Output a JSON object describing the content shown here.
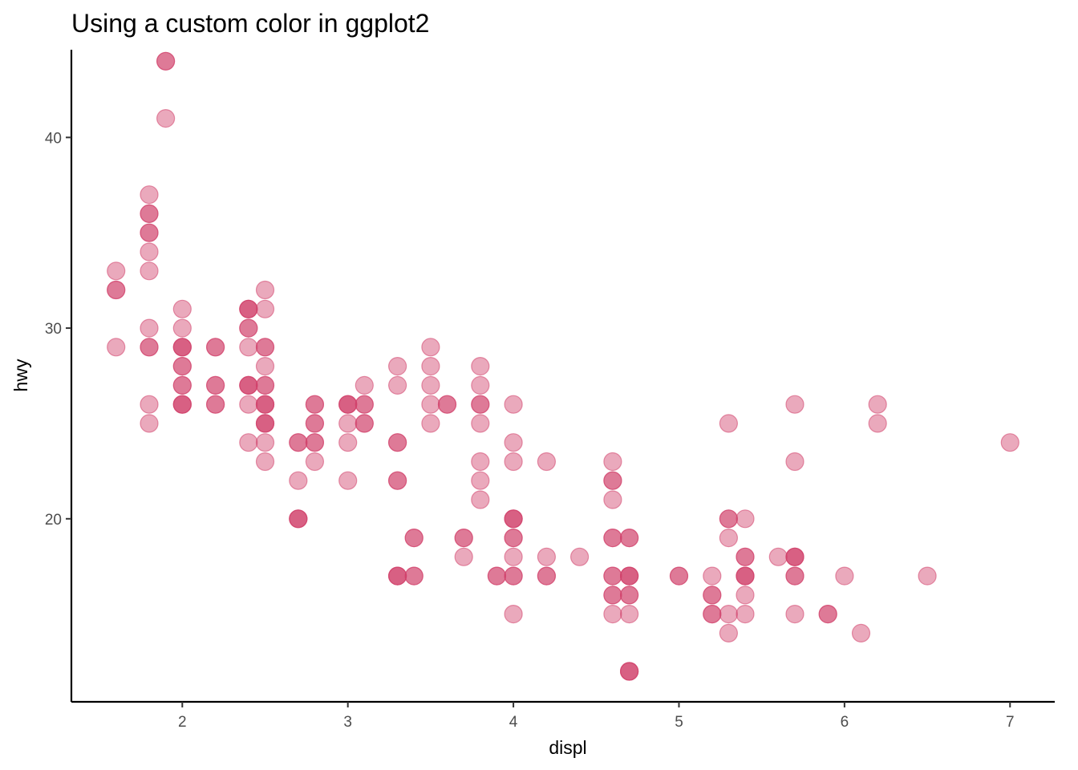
{
  "chart_data": {
    "type": "scatter",
    "title": "Using a custom color in ggplot2",
    "xlabel": "displ",
    "ylabel": "hwy",
    "xlim": [
      1.33,
      7.27
    ],
    "ylim": [
      10.4,
      44.6
    ],
    "x_ticks": [
      {
        "value": 2,
        "label": "2"
      },
      {
        "value": 3,
        "label": "3"
      },
      {
        "value": 4,
        "label": "4"
      },
      {
        "value": 5,
        "label": "5"
      },
      {
        "value": 6,
        "label": "6"
      },
      {
        "value": 7,
        "label": "7"
      }
    ],
    "y_ticks": [
      {
        "value": 20,
        "label": "20"
      },
      {
        "value": 30,
        "label": "30"
      },
      {
        "value": 40,
        "label": "40"
      }
    ],
    "grid": false,
    "point_color": "#D1406A",
    "point_alpha": 0.45,
    "points": [
      {
        "x": 1.9,
        "y": 44
      },
      {
        "x": 1.9,
        "y": 44
      },
      {
        "x": 1.9,
        "y": 41
      },
      {
        "x": 1.6,
        "y": 33
      },
      {
        "x": 1.6,
        "y": 32
      },
      {
        "x": 1.6,
        "y": 32
      },
      {
        "x": 1.6,
        "y": 29
      },
      {
        "x": 1.8,
        "y": 37
      },
      {
        "x": 1.8,
        "y": 36
      },
      {
        "x": 1.8,
        "y": 36
      },
      {
        "x": 1.8,
        "y": 35
      },
      {
        "x": 1.8,
        "y": 35
      },
      {
        "x": 1.8,
        "y": 34
      },
      {
        "x": 1.8,
        "y": 33
      },
      {
        "x": 1.8,
        "y": 30
      },
      {
        "x": 1.8,
        "y": 29
      },
      {
        "x": 1.8,
        "y": 29
      },
      {
        "x": 1.8,
        "y": 26
      },
      {
        "x": 1.8,
        "y": 25
      },
      {
        "x": 2.0,
        "y": 31
      },
      {
        "x": 2.0,
        "y": 30
      },
      {
        "x": 2.0,
        "y": 29
      },
      {
        "x": 2.0,
        "y": 29
      },
      {
        "x": 2.0,
        "y": 29
      },
      {
        "x": 2.0,
        "y": 28
      },
      {
        "x": 2.0,
        "y": 28
      },
      {
        "x": 2.0,
        "y": 27
      },
      {
        "x": 2.0,
        "y": 27
      },
      {
        "x": 2.0,
        "y": 26
      },
      {
        "x": 2.0,
        "y": 26
      },
      {
        "x": 2.0,
        "y": 26
      },
      {
        "x": 2.2,
        "y": 29
      },
      {
        "x": 2.2,
        "y": 29
      },
      {
        "x": 2.2,
        "y": 27
      },
      {
        "x": 2.2,
        "y": 27
      },
      {
        "x": 2.2,
        "y": 26
      },
      {
        "x": 2.2,
        "y": 26
      },
      {
        "x": 2.4,
        "y": 31
      },
      {
        "x": 2.4,
        "y": 31
      },
      {
        "x": 2.4,
        "y": 31
      },
      {
        "x": 2.4,
        "y": 30
      },
      {
        "x": 2.4,
        "y": 30
      },
      {
        "x": 2.4,
        "y": 29
      },
      {
        "x": 2.4,
        "y": 27
      },
      {
        "x": 2.4,
        "y": 27
      },
      {
        "x": 2.4,
        "y": 27
      },
      {
        "x": 2.4,
        "y": 26
      },
      {
        "x": 2.4,
        "y": 24
      },
      {
        "x": 2.5,
        "y": 32
      },
      {
        "x": 2.5,
        "y": 31
      },
      {
        "x": 2.5,
        "y": 29
      },
      {
        "x": 2.5,
        "y": 29
      },
      {
        "x": 2.5,
        "y": 28
      },
      {
        "x": 2.5,
        "y": 27
      },
      {
        "x": 2.5,
        "y": 27
      },
      {
        "x": 2.5,
        "y": 26
      },
      {
        "x": 2.5,
        "y": 26
      },
      {
        "x": 2.5,
        "y": 26
      },
      {
        "x": 2.5,
        "y": 25
      },
      {
        "x": 2.5,
        "y": 25
      },
      {
        "x": 2.5,
        "y": 25
      },
      {
        "x": 2.5,
        "y": 24
      },
      {
        "x": 2.5,
        "y": 23
      },
      {
        "x": 2.7,
        "y": 24
      },
      {
        "x": 2.7,
        "y": 24
      },
      {
        "x": 2.7,
        "y": 22
      },
      {
        "x": 2.7,
        "y": 20
      },
      {
        "x": 2.7,
        "y": 20
      },
      {
        "x": 2.7,
        "y": 20
      },
      {
        "x": 2.8,
        "y": 26
      },
      {
        "x": 2.8,
        "y": 26
      },
      {
        "x": 2.8,
        "y": 25
      },
      {
        "x": 2.8,
        "y": 25
      },
      {
        "x": 2.8,
        "y": 24
      },
      {
        "x": 2.8,
        "y": 24
      },
      {
        "x": 2.8,
        "y": 23
      },
      {
        "x": 3.0,
        "y": 26
      },
      {
        "x": 3.0,
        "y": 26
      },
      {
        "x": 3.0,
        "y": 26
      },
      {
        "x": 3.0,
        "y": 25
      },
      {
        "x": 3.0,
        "y": 24
      },
      {
        "x": 3.0,
        "y": 22
      },
      {
        "x": 3.1,
        "y": 27
      },
      {
        "x": 3.1,
        "y": 26
      },
      {
        "x": 3.1,
        "y": 26
      },
      {
        "x": 3.1,
        "y": 25
      },
      {
        "x": 3.1,
        "y": 25
      },
      {
        "x": 3.3,
        "y": 28
      },
      {
        "x": 3.3,
        "y": 27
      },
      {
        "x": 3.3,
        "y": 24
      },
      {
        "x": 3.3,
        "y": 24
      },
      {
        "x": 3.3,
        "y": 22
      },
      {
        "x": 3.3,
        "y": 22
      },
      {
        "x": 3.3,
        "y": 17
      },
      {
        "x": 3.3,
        "y": 17
      },
      {
        "x": 3.3,
        "y": 17
      },
      {
        "x": 3.4,
        "y": 19
      },
      {
        "x": 3.4,
        "y": 19
      },
      {
        "x": 3.4,
        "y": 17
      },
      {
        "x": 3.4,
        "y": 17
      },
      {
        "x": 3.5,
        "y": 29
      },
      {
        "x": 3.5,
        "y": 28
      },
      {
        "x": 3.5,
        "y": 27
      },
      {
        "x": 3.5,
        "y": 26
      },
      {
        "x": 3.5,
        "y": 25
      },
      {
        "x": 3.6,
        "y": 26
      },
      {
        "x": 3.6,
        "y": 26
      },
      {
        "x": 3.7,
        "y": 19
      },
      {
        "x": 3.7,
        "y": 19
      },
      {
        "x": 3.7,
        "y": 18
      },
      {
        "x": 3.8,
        "y": 28
      },
      {
        "x": 3.8,
        "y": 27
      },
      {
        "x": 3.8,
        "y": 26
      },
      {
        "x": 3.8,
        "y": 26
      },
      {
        "x": 3.8,
        "y": 25
      },
      {
        "x": 3.8,
        "y": 23
      },
      {
        "x": 3.8,
        "y": 22
      },
      {
        "x": 3.8,
        "y": 21
      },
      {
        "x": 3.9,
        "y": 17
      },
      {
        "x": 3.9,
        "y": 17
      },
      {
        "x": 4.0,
        "y": 26
      },
      {
        "x": 4.0,
        "y": 24
      },
      {
        "x": 4.0,
        "y": 23
      },
      {
        "x": 4.0,
        "y": 20
      },
      {
        "x": 4.0,
        "y": 20
      },
      {
        "x": 4.0,
        "y": 20
      },
      {
        "x": 4.0,
        "y": 19
      },
      {
        "x": 4.0,
        "y": 19
      },
      {
        "x": 4.0,
        "y": 18
      },
      {
        "x": 4.0,
        "y": 17
      },
      {
        "x": 4.0,
        "y": 17
      },
      {
        "x": 4.0,
        "y": 15
      },
      {
        "x": 4.2,
        "y": 23
      },
      {
        "x": 4.2,
        "y": 18
      },
      {
        "x": 4.2,
        "y": 17
      },
      {
        "x": 4.2,
        "y": 17
      },
      {
        "x": 4.4,
        "y": 18
      },
      {
        "x": 4.6,
        "y": 23
      },
      {
        "x": 4.6,
        "y": 22
      },
      {
        "x": 4.6,
        "y": 22
      },
      {
        "x": 4.6,
        "y": 21
      },
      {
        "x": 4.6,
        "y": 19
      },
      {
        "x": 4.6,
        "y": 19
      },
      {
        "x": 4.6,
        "y": 17
      },
      {
        "x": 4.6,
        "y": 17
      },
      {
        "x": 4.6,
        "y": 16
      },
      {
        "x": 4.6,
        "y": 16
      },
      {
        "x": 4.6,
        "y": 15
      },
      {
        "x": 4.7,
        "y": 19
      },
      {
        "x": 4.7,
        "y": 19
      },
      {
        "x": 4.7,
        "y": 17
      },
      {
        "x": 4.7,
        "y": 17
      },
      {
        "x": 4.7,
        "y": 17
      },
      {
        "x": 4.7,
        "y": 16
      },
      {
        "x": 4.7,
        "y": 16
      },
      {
        "x": 4.7,
        "y": 15
      },
      {
        "x": 4.7,
        "y": 12
      },
      {
        "x": 4.7,
        "y": 12
      },
      {
        "x": 4.7,
        "y": 12
      },
      {
        "x": 5.0,
        "y": 17
      },
      {
        "x": 5.0,
        "y": 17
      },
      {
        "x": 5.2,
        "y": 17
      },
      {
        "x": 5.2,
        "y": 16
      },
      {
        "x": 5.2,
        "y": 16
      },
      {
        "x": 5.2,
        "y": 15
      },
      {
        "x": 5.2,
        "y": 15
      },
      {
        "x": 5.3,
        "y": 25
      },
      {
        "x": 5.3,
        "y": 20
      },
      {
        "x": 5.3,
        "y": 20
      },
      {
        "x": 5.3,
        "y": 19
      },
      {
        "x": 5.3,
        "y": 15
      },
      {
        "x": 5.3,
        "y": 14
      },
      {
        "x": 5.4,
        "y": 20
      },
      {
        "x": 5.4,
        "y": 18
      },
      {
        "x": 5.4,
        "y": 18
      },
      {
        "x": 5.4,
        "y": 17
      },
      {
        "x": 5.4,
        "y": 17
      },
      {
        "x": 5.4,
        "y": 17
      },
      {
        "x": 5.4,
        "y": 16
      },
      {
        "x": 5.4,
        "y": 15
      },
      {
        "x": 5.6,
        "y": 18
      },
      {
        "x": 5.7,
        "y": 26
      },
      {
        "x": 5.7,
        "y": 23
      },
      {
        "x": 5.7,
        "y": 18
      },
      {
        "x": 5.7,
        "y": 18
      },
      {
        "x": 5.7,
        "y": 18
      },
      {
        "x": 5.7,
        "y": 17
      },
      {
        "x": 5.7,
        "y": 17
      },
      {
        "x": 5.7,
        "y": 15
      },
      {
        "x": 5.9,
        "y": 15
      },
      {
        "x": 5.9,
        "y": 15
      },
      {
        "x": 6.0,
        "y": 17
      },
      {
        "x": 6.1,
        "y": 14
      },
      {
        "x": 6.2,
        "y": 26
      },
      {
        "x": 6.2,
        "y": 25
      },
      {
        "x": 6.5,
        "y": 17
      },
      {
        "x": 7.0,
        "y": 24
      }
    ]
  }
}
